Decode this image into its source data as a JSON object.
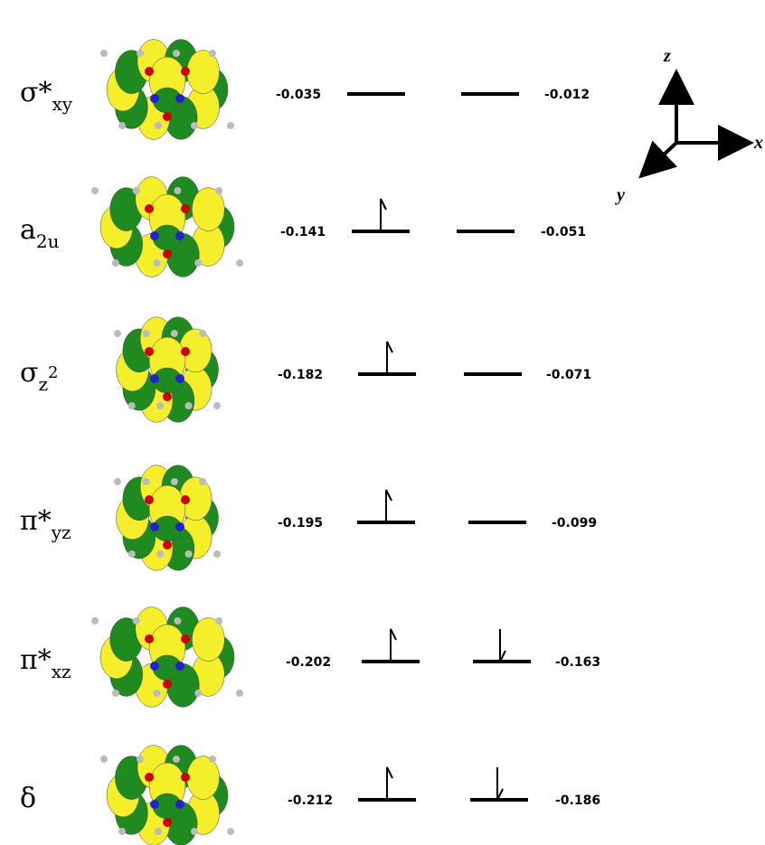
{
  "axes": {
    "z": "z",
    "x": "x",
    "y": "y"
  },
  "orbitals": [
    {
      "symbol": "σ*",
      "subscript": "xy",
      "alpha_energy": -0.035,
      "beta_energy": -0.012,
      "alpha_occupied": false,
      "beta_occupied": false
    },
    {
      "symbol": "a",
      "subscript": "2u",
      "alpha_energy": -0.141,
      "beta_energy": -0.051,
      "alpha_occupied": true,
      "beta_occupied": false
    },
    {
      "symbol": "σ",
      "subscript": "z",
      "superscript": "2",
      "alpha_energy": -0.182,
      "beta_energy": -0.071,
      "alpha_occupied": true,
      "beta_occupied": false
    },
    {
      "symbol": "π*",
      "subscript": "yz",
      "alpha_energy": -0.195,
      "beta_energy": -0.099,
      "alpha_occupied": true,
      "beta_occupied": false
    },
    {
      "symbol": "π*",
      "subscript": "xz",
      "alpha_energy": -0.202,
      "beta_energy": -0.163,
      "alpha_occupied": true,
      "beta_occupied": true
    },
    {
      "symbol": "δ",
      "alpha_energy": -0.212,
      "beta_energy": -0.186,
      "alpha_occupied": true,
      "beta_occupied": true
    }
  ]
}
